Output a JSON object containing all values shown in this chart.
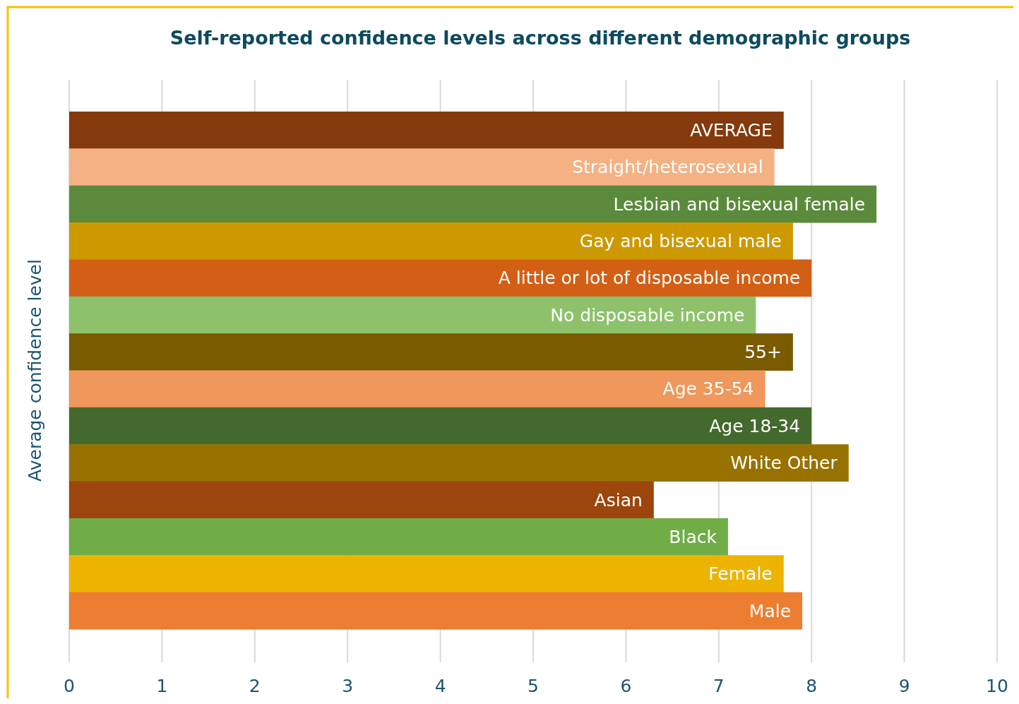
{
  "chart_data": {
    "type": "bar",
    "orientation": "horizontal",
    "title": "Self-reported confidence levels across different demographic groups",
    "ylabel": "Average confidence level",
    "categories": [
      "AVERAGE",
      "Straight/heterosexual",
      "Lesbian and bisexual female",
      "Gay and bisexual male",
      "A little or lot of disposable income",
      "No disposable income",
      "55+",
      "Age 35-54",
      "Age 18-34",
      "White Other",
      "Asian",
      "Black",
      "Female",
      "Male"
    ],
    "values": [
      7.7,
      7.6,
      8.7,
      7.8,
      8.0,
      7.4,
      7.8,
      7.5,
      8.0,
      8.4,
      6.3,
      7.1,
      7.7,
      7.9
    ],
    "colors": [
      "#843a0c",
      "#f4b183",
      "#5b8a3c",
      "#cc9900",
      "#d35f14",
      "#8dc26a",
      "#7b5b00",
      "#f0975b",
      "#436a2c",
      "#987200",
      "#9c450c",
      "#70ad47",
      "#ecb400",
      "#ed7d31"
    ],
    "xlim": [
      0,
      10
    ],
    "xticks": [
      0,
      1,
      2,
      3,
      4,
      5,
      6,
      7,
      8,
      9,
      10
    ],
    "grid": "x"
  }
}
